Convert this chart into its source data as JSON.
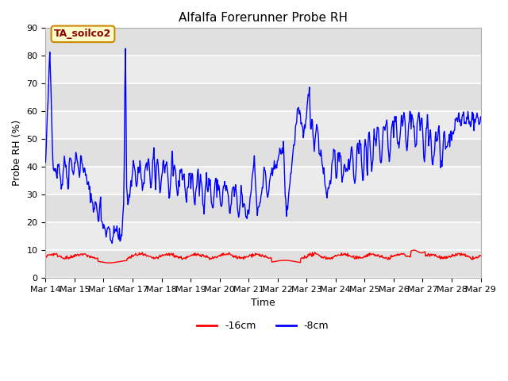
{
  "title": "Alfalfa Forerunner Probe RH",
  "xlabel": "Time",
  "ylabel": "Probe RH (%)",
  "annotation": "TA_soilco2",
  "ylim": [
    0,
    90
  ],
  "yticks": [
    0,
    10,
    20,
    30,
    40,
    50,
    60,
    70,
    80,
    90
  ],
  "bg_color": "#ffffff",
  "plot_bg_color": "#e8e8e8",
  "line_blue_color": "blue",
  "line_red_color": "red",
  "legend_labels": [
    "-16cm",
    "-8cm"
  ],
  "x_tick_labels": [
    "Mar 14",
    "Mar 15",
    "Mar 16",
    "Mar 17",
    "Mar 18",
    "Mar 19",
    "Mar 20",
    "Mar 21",
    "Mar 22",
    "Mar 23",
    "Mar 24",
    "Mar 25",
    "Mar 26",
    "Mar 27",
    "Mar 28",
    "Mar 29"
  ],
  "n_days": 15,
  "samples_per_day": 48
}
